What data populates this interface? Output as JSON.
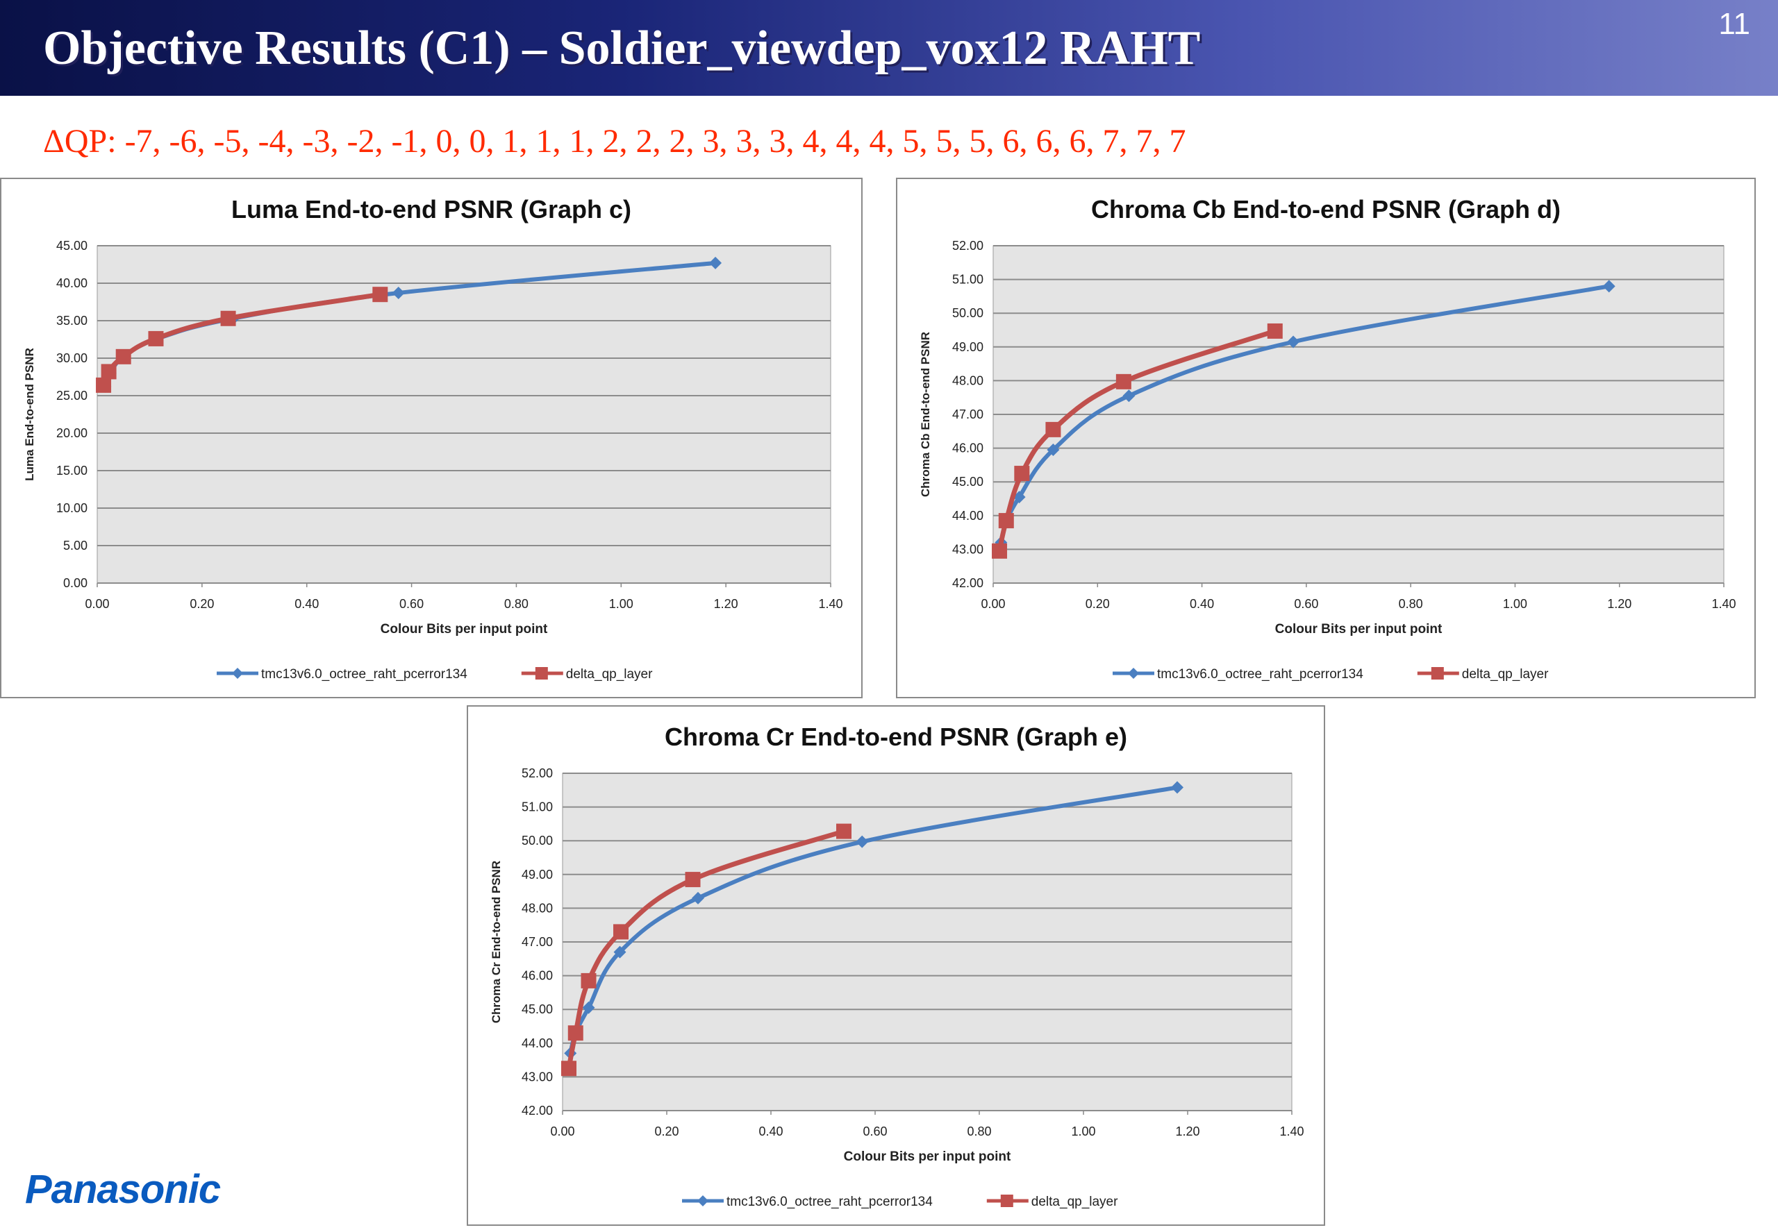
{
  "slide": {
    "title": "Objective Results (C1) – Soldier_viewdep_vox12 RAHT",
    "page_number": "11",
    "dqp_text": "ΔQP: -7, -6, -5, -4, -3, -2, -1, 0, 0, 1, 1, 1, 2, 2, 2, 3, 3, 3, 4, 4, 4, 5, 5, 5, 6, 6, 6, 7, 7, 7",
    "logo": "Panasonic"
  },
  "colors": {
    "series_blue": "#4a7fc1",
    "series_red": "#c0504d",
    "plot_bg": "#e4e4e4",
    "grid": "#8c8c8c",
    "dqp_text": "#ff2a00"
  },
  "chart_data": [
    {
      "id": "c",
      "type": "line",
      "title": "Luma End-to-end PSNR (Graph c)",
      "xlabel": "Colour  Bits per input point",
      "ylabel": "Luma End-to-end PSNR",
      "xlim": [
        0,
        1.4
      ],
      "ylim": [
        0,
        45
      ],
      "xticks": [
        "0.00",
        "0.20",
        "0.40",
        "0.60",
        "0.80",
        "1.00",
        "1.20",
        "1.40"
      ],
      "yticks": [
        "0.00",
        "5.00",
        "10.00",
        "15.00",
        "20.00",
        "25.00",
        "30.00",
        "35.00",
        "40.00",
        "45.00"
      ],
      "grid": true,
      "legend_position": "bottom",
      "series": [
        {
          "name": "tmc13v6.0_octree_raht_pcerror134",
          "color": "#4a7fc1",
          "marker": "diamond",
          "x": [
            0.015,
            0.025,
            0.05,
            0.115,
            0.26,
            0.575,
            1.18
          ],
          "y": [
            26.2,
            28.0,
            30.2,
            32.6,
            35.3,
            38.7,
            42.7
          ]
        },
        {
          "name": "delta_qp_layer",
          "color": "#c0504d",
          "marker": "square",
          "x": [
            0.012,
            0.022,
            0.05,
            0.112,
            0.25,
            0.54
          ],
          "y": [
            26.4,
            28.2,
            30.2,
            32.6,
            35.3,
            38.5
          ]
        }
      ]
    },
    {
      "id": "d",
      "type": "line",
      "title": "Chroma Cb End-to-end PSNR (Graph d)",
      "xlabel": "Colour  Bits per input point",
      "ylabel": "Chroma Cb End-to-end PSNR",
      "xlim": [
        0,
        1.4
      ],
      "ylim": [
        42,
        52
      ],
      "xticks": [
        "0.00",
        "0.20",
        "0.40",
        "0.60",
        "0.80",
        "1.00",
        "1.20",
        "1.40"
      ],
      "yticks": [
        "42.00",
        "43.00",
        "44.00",
        "45.00",
        "46.00",
        "47.00",
        "48.00",
        "49.00",
        "50.00",
        "51.00",
        "52.00"
      ],
      "grid": true,
      "legend_position": "bottom",
      "series": [
        {
          "name": "tmc13v6.0_octree_raht_pcerror134",
          "color": "#4a7fc1",
          "marker": "diamond",
          "x": [
            0.015,
            0.025,
            0.05,
            0.115,
            0.26,
            0.575,
            1.18
          ],
          "y": [
            43.2,
            43.8,
            44.55,
            45.95,
            47.55,
            49.15,
            50.8
          ]
        },
        {
          "name": "delta_qp_layer",
          "color": "#c0504d",
          "marker": "square",
          "x": [
            0.012,
            0.025,
            0.055,
            0.115,
            0.25,
            0.54
          ],
          "y": [
            42.95,
            43.85,
            45.25,
            46.55,
            47.97,
            49.47
          ]
        }
      ]
    },
    {
      "id": "e",
      "type": "line",
      "title": "Chroma Cr End-to-end PSNR (Graph e)",
      "xlabel": "Colour  Bits per input point",
      "ylabel": "Chroma Cr End-to-end PSNR",
      "xlim": [
        0,
        1.4
      ],
      "ylim": [
        42,
        52
      ],
      "xticks": [
        "0.00",
        "0.20",
        "0.40",
        "0.60",
        "0.80",
        "1.00",
        "1.20",
        "1.40"
      ],
      "yticks": [
        "42.00",
        "43.00",
        "44.00",
        "45.00",
        "46.00",
        "47.00",
        "48.00",
        "49.00",
        "50.00",
        "51.00",
        "52.00"
      ],
      "grid": true,
      "legend_position": "bottom",
      "series": [
        {
          "name": "tmc13v6.0_octree_raht_pcerror134",
          "color": "#4a7fc1",
          "marker": "diamond",
          "x": [
            0.015,
            0.025,
            0.05,
            0.11,
            0.26,
            0.575,
            1.18
          ],
          "y": [
            43.7,
            44.3,
            45.05,
            46.7,
            48.3,
            49.97,
            51.58
          ]
        },
        {
          "name": "delta_qp_layer",
          "color": "#c0504d",
          "marker": "square",
          "x": [
            0.012,
            0.025,
            0.05,
            0.112,
            0.25,
            0.54
          ],
          "y": [
            43.25,
            44.3,
            45.85,
            47.3,
            48.85,
            50.28
          ]
        }
      ]
    }
  ]
}
